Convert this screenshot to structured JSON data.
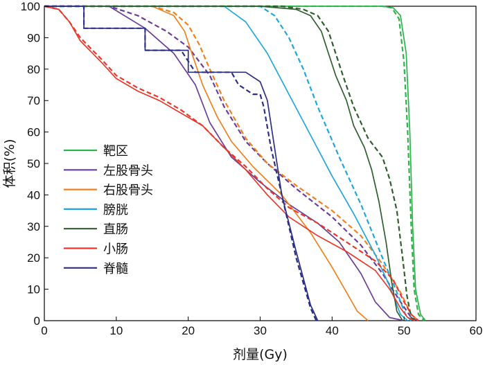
{
  "chart_data": {
    "type": "line",
    "xlabel": "剂量(Gy)",
    "ylabel": "体积(%)",
    "xlim": [
      0,
      60
    ],
    "ylim": [
      0,
      100
    ],
    "x_ticks": [
      "0",
      "10",
      "20",
      "30",
      "40",
      "50",
      "60"
    ],
    "y_ticks": [
      "0",
      "10",
      "20",
      "30",
      "40",
      "50",
      "60",
      "70",
      "80",
      "90",
      "100"
    ],
    "grid": false,
    "legend_position": "center-left",
    "line_styles": [
      "solid",
      "dashed"
    ],
    "series": [
      {
        "name": "靶区",
        "color": "#2db34a",
        "solid": [
          [
            0,
            100
          ],
          [
            47,
            100
          ],
          [
            48.5,
            99.5
          ],
          [
            49.5,
            97
          ],
          [
            50.3,
            85
          ],
          [
            50.8,
            60
          ],
          [
            51.2,
            30
          ],
          [
            51.6,
            10
          ],
          [
            52.3,
            2
          ],
          [
            53,
            0
          ]
        ],
        "dashed": [
          [
            0,
            100
          ],
          [
            47,
            100
          ],
          [
            48.3,
            99.5
          ],
          [
            49.3,
            96
          ],
          [
            50,
            82
          ],
          [
            50.5,
            60
          ],
          [
            51,
            30
          ],
          [
            51.4,
            10
          ],
          [
            52,
            2
          ],
          [
            52.8,
            0
          ]
        ]
      },
      {
        "name": "左股骨头",
        "color": "#6a3d9a",
        "solid": [
          [
            0,
            100
          ],
          [
            9,
            100
          ],
          [
            14,
            93
          ],
          [
            18,
            85
          ],
          [
            21,
            75
          ],
          [
            23,
            63
          ],
          [
            26,
            52
          ],
          [
            30,
            44
          ],
          [
            34,
            37
          ],
          [
            38,
            31
          ],
          [
            41,
            25
          ],
          [
            44,
            15
          ],
          [
            46,
            6
          ],
          [
            48,
            1
          ],
          [
            50,
            0
          ]
        ],
        "dashed": [
          [
            0,
            100
          ],
          [
            9,
            100
          ],
          [
            13,
            97
          ],
          [
            17,
            92
          ],
          [
            20,
            87
          ],
          [
            23,
            78
          ],
          [
            25,
            68
          ],
          [
            28,
            57
          ],
          [
            31,
            50
          ],
          [
            35,
            42
          ],
          [
            40,
            33
          ],
          [
            44,
            24
          ],
          [
            47,
            15
          ],
          [
            49.5,
            6
          ],
          [
            51,
            1
          ],
          [
            52,
            0
          ]
        ]
      },
      {
        "name": "右股骨头",
        "color": "#f0801e",
        "solid": [
          [
            0,
            100
          ],
          [
            15,
            100
          ],
          [
            18,
            97
          ],
          [
            19.5,
            92
          ],
          [
            20.5,
            85
          ],
          [
            22,
            75
          ],
          [
            24,
            65
          ],
          [
            26,
            57
          ],
          [
            29,
            49
          ],
          [
            33,
            40
          ],
          [
            37,
            28
          ],
          [
            40,
            17
          ],
          [
            42,
            9
          ],
          [
            43.5,
            3
          ],
          [
            45,
            0
          ]
        ],
        "dashed": [
          [
            0,
            100
          ],
          [
            15,
            100
          ],
          [
            18,
            98
          ],
          [
            20,
            94
          ],
          [
            21.5,
            88
          ],
          [
            23,
            80
          ],
          [
            25,
            70
          ],
          [
            28,
            58
          ],
          [
            31,
            50
          ],
          [
            35,
            43
          ],
          [
            40,
            35
          ],
          [
            44,
            27
          ],
          [
            47,
            18
          ],
          [
            49.5,
            9
          ],
          [
            51,
            2
          ],
          [
            52,
            0
          ]
        ]
      },
      {
        "name": "膀胱",
        "color": "#1fa6dc",
        "solid": [
          [
            0,
            100
          ],
          [
            25,
            100
          ],
          [
            28,
            95
          ],
          [
            31,
            85
          ],
          [
            34,
            72
          ],
          [
            37,
            59
          ],
          [
            40,
            46
          ],
          [
            43,
            34
          ],
          [
            46,
            21
          ],
          [
            48,
            11
          ],
          [
            49.5,
            2
          ],
          [
            50.5,
            0
          ]
        ],
        "dashed": [
          [
            0,
            100
          ],
          [
            30,
            100
          ],
          [
            32,
            97
          ],
          [
            34,
            90
          ],
          [
            36,
            80
          ],
          [
            38,
            68
          ],
          [
            41,
            52
          ],
          [
            44,
            37
          ],
          [
            47,
            20
          ],
          [
            49,
            9
          ],
          [
            50.2,
            2
          ],
          [
            51,
            0
          ]
        ]
      },
      {
        "name": "直肠",
        "color": "#2e5e2e",
        "solid": [
          [
            0,
            100
          ],
          [
            30,
            100
          ],
          [
            35,
            99
          ],
          [
            37,
            97
          ],
          [
            38.5,
            92
          ],
          [
            39.5,
            85
          ],
          [
            40.5,
            78
          ],
          [
            42,
            70
          ],
          [
            43,
            62
          ],
          [
            44.5,
            55
          ],
          [
            45.5,
            48
          ],
          [
            46.5,
            38
          ],
          [
            47.5,
            25
          ],
          [
            48.3,
            12
          ],
          [
            49,
            3
          ],
          [
            49.8,
            0
          ]
        ],
        "dashed": [
          [
            0,
            100
          ],
          [
            33,
            100
          ],
          [
            36,
            99
          ],
          [
            38,
            97
          ],
          [
            39.5,
            92
          ],
          [
            40.5,
            85
          ],
          [
            41.5,
            78
          ],
          [
            43,
            68
          ],
          [
            45,
            58
          ],
          [
            47,
            52
          ],
          [
            48,
            45
          ],
          [
            49,
            35
          ],
          [
            49.8,
            20
          ],
          [
            50.4,
            8
          ],
          [
            51,
            1
          ],
          [
            51.5,
            0
          ]
        ]
      },
      {
        "name": "小肠",
        "color": "#e8382b",
        "solid": [
          [
            0,
            100
          ],
          [
            2,
            99
          ],
          [
            3.5,
            95
          ],
          [
            5,
            89
          ],
          [
            8,
            82
          ],
          [
            10,
            77
          ],
          [
            13,
            73
          ],
          [
            16,
            70
          ],
          [
            19,
            66
          ],
          [
            22,
            62
          ],
          [
            25,
            55
          ],
          [
            28,
            48
          ],
          [
            31,
            40
          ],
          [
            34,
            33
          ],
          [
            38,
            27
          ],
          [
            42,
            22
          ],
          [
            46,
            16
          ],
          [
            48,
            10
          ],
          [
            49.5,
            4
          ],
          [
            50.5,
            1
          ],
          [
            51.5,
            0
          ]
        ],
        "dashed": [
          [
            0,
            100
          ],
          [
            2,
            99
          ],
          [
            3.5,
            95
          ],
          [
            5,
            90
          ],
          [
            8,
            83
          ],
          [
            10,
            78
          ],
          [
            13,
            74
          ],
          [
            16,
            71
          ],
          [
            19,
            67
          ],
          [
            22,
            62
          ],
          [
            25,
            55
          ],
          [
            28,
            49
          ],
          [
            31,
            42
          ],
          [
            34,
            36
          ],
          [
            38,
            31
          ],
          [
            42,
            25
          ],
          [
            46,
            19
          ],
          [
            48.5,
            13
          ],
          [
            50,
            6
          ],
          [
            51,
            2
          ],
          [
            52,
            0
          ]
        ]
      },
      {
        "name": "脊髓",
        "color": "#2b2f86",
        "solid": [
          [
            0,
            100
          ],
          [
            5.5,
            100
          ],
          [
            5.5,
            93
          ],
          [
            14,
            93
          ],
          [
            14,
            86
          ],
          [
            20,
            86
          ],
          [
            20,
            79
          ],
          [
            28,
            79
          ],
          [
            30,
            76
          ],
          [
            30.5,
            73
          ],
          [
            31,
            70
          ],
          [
            32,
            55
          ],
          [
            33,
            40
          ],
          [
            35,
            22
          ],
          [
            37,
            5
          ],
          [
            38,
            0
          ]
        ],
        "dashed": [
          [
            0,
            100
          ],
          [
            5.5,
            100
          ],
          [
            5.5,
            93
          ],
          [
            14,
            93
          ],
          [
            14,
            86
          ],
          [
            19,
            86
          ],
          [
            21,
            79
          ],
          [
            26,
            79
          ],
          [
            27,
            75
          ],
          [
            29,
            72
          ],
          [
            30,
            72
          ],
          [
            30.5,
            68
          ],
          [
            31.5,
            55
          ],
          [
            33,
            40
          ],
          [
            35,
            20
          ],
          [
            37,
            4
          ],
          [
            37.8,
            0
          ]
        ]
      }
    ]
  }
}
